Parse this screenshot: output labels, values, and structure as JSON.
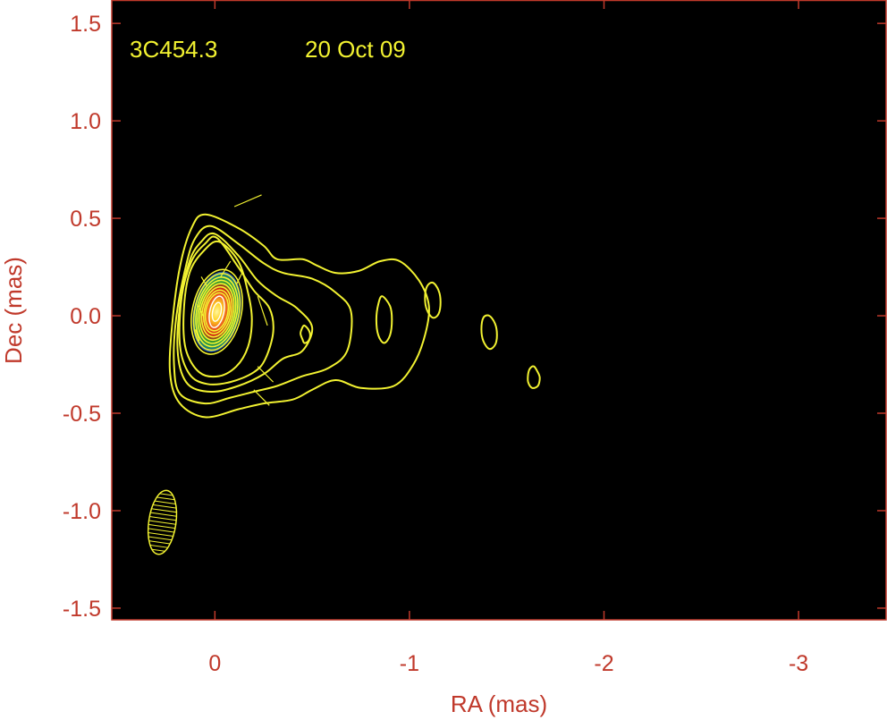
{
  "chart_data": {
    "type": "contour",
    "source_label": "3C454.3",
    "date_label": "20 Oct 09",
    "xlabel": "RA (mas)",
    "ylabel": "Dec (mas)",
    "xlim": [
      0.53,
      -3.45
    ],
    "ylim": [
      -1.56,
      1.62
    ],
    "x_ticks": [
      {
        "value": 0,
        "label": "0"
      },
      {
        "value": -1,
        "label": "-1"
      },
      {
        "value": -2,
        "label": "-2"
      },
      {
        "value": -3,
        "label": "-3"
      }
    ],
    "y_ticks": [
      {
        "value": 1.5,
        "label": "1.5"
      },
      {
        "value": 1.0,
        "label": "1.0"
      },
      {
        "value": 0.5,
        "label": "0.5"
      },
      {
        "value": 0.0,
        "label": "0.0"
      },
      {
        "value": -0.5,
        "label": "-0.5"
      },
      {
        "value": -1.0,
        "label": "-1.0"
      },
      {
        "value": -1.5,
        "label": "-1.5"
      }
    ],
    "core": {
      "x": -0.01,
      "y": 0.02,
      "width": 0.24,
      "height": 0.42,
      "tilt_deg": 12
    },
    "outer_contours": [
      [
        [
          0.05,
          0.52
        ],
        [
          -0.12,
          0.45
        ],
        [
          -0.25,
          0.36
        ],
        [
          -0.32,
          0.29
        ],
        [
          -0.45,
          0.29
        ],
        [
          -0.52,
          0.26
        ],
        [
          -0.62,
          0.22
        ],
        [
          -0.74,
          0.23
        ],
        [
          -0.85,
          0.28
        ],
        [
          -0.95,
          0.28
        ],
        [
          -1.05,
          0.18
        ],
        [
          -1.1,
          0.05
        ],
        [
          -1.08,
          -0.1
        ],
        [
          -1.02,
          -0.25
        ],
        [
          -0.92,
          -0.36
        ],
        [
          -0.75,
          -0.37
        ],
        [
          -0.62,
          -0.33
        ],
        [
          -0.5,
          -0.38
        ],
        [
          -0.4,
          -0.43
        ],
        [
          -0.25,
          -0.45
        ],
        [
          -0.12,
          -0.48
        ],
        [
          0.05,
          -0.52
        ],
        [
          0.18,
          -0.45
        ],
        [
          0.23,
          -0.3
        ],
        [
          0.22,
          -0.05
        ],
        [
          0.18,
          0.25
        ],
        [
          0.12,
          0.45
        ],
        [
          0.05,
          0.52
        ]
      ],
      [
        [
          0.02,
          0.46
        ],
        [
          -0.12,
          0.37
        ],
        [
          -0.25,
          0.27
        ],
        [
          -0.35,
          0.22
        ],
        [
          -0.5,
          0.19
        ],
        [
          -0.62,
          0.12
        ],
        [
          -0.7,
          0.02
        ],
        [
          -0.68,
          -0.18
        ],
        [
          -0.58,
          -0.27
        ],
        [
          -0.45,
          -0.31
        ],
        [
          -0.32,
          -0.36
        ],
        [
          -0.2,
          -0.39
        ],
        [
          -0.08,
          -0.42
        ],
        [
          0.05,
          -0.45
        ],
        [
          0.18,
          -0.4
        ],
        [
          0.21,
          -0.25
        ],
        [
          0.2,
          -0.02
        ],
        [
          0.15,
          0.25
        ],
        [
          0.1,
          0.4
        ],
        [
          0.02,
          0.46
        ]
      ],
      [
        [
          0.0,
          0.42
        ],
        [
          -0.12,
          0.31
        ],
        [
          -0.22,
          0.18
        ],
        [
          -0.32,
          0.1
        ],
        [
          -0.42,
          0.04
        ],
        [
          -0.5,
          -0.06
        ],
        [
          -0.45,
          -0.18
        ],
        [
          -0.35,
          -0.22
        ],
        [
          -0.25,
          -0.3
        ],
        [
          -0.12,
          -0.36
        ],
        [
          0.02,
          -0.39
        ],
        [
          0.14,
          -0.35
        ],
        [
          0.19,
          -0.2
        ],
        [
          0.18,
          0.05
        ],
        [
          0.13,
          0.28
        ],
        [
          0.07,
          0.38
        ],
        [
          0.0,
          0.42
        ]
      ],
      [
        [
          -0.01,
          0.4
        ],
        [
          -0.12,
          0.25
        ],
        [
          -0.2,
          0.13
        ],
        [
          -0.28,
          0.04
        ],
        [
          -0.3,
          -0.08
        ],
        [
          -0.26,
          -0.22
        ],
        [
          -0.2,
          -0.29
        ],
        [
          -0.08,
          -0.34
        ],
        [
          0.04,
          -0.35
        ],
        [
          0.13,
          -0.3
        ],
        [
          0.18,
          -0.15
        ],
        [
          0.17,
          0.1
        ],
        [
          0.12,
          0.28
        ],
        [
          0.05,
          0.37
        ],
        [
          -0.01,
          0.4
        ]
      ],
      [
        [
          -0.02,
          0.38
        ],
        [
          -0.12,
          0.28
        ],
        [
          -0.17,
          0.12
        ],
        [
          -0.19,
          -0.02
        ],
        [
          -0.17,
          -0.16
        ],
        [
          -0.11,
          -0.26
        ],
        [
          -0.02,
          -0.31
        ],
        [
          0.08,
          -0.29
        ],
        [
          0.15,
          -0.17
        ],
        [
          0.16,
          0.02
        ],
        [
          0.13,
          0.22
        ],
        [
          0.06,
          0.33
        ],
        [
          -0.02,
          0.38
        ]
      ],
      [
        [
          -0.86,
          0.1
        ],
        [
          -0.9,
          0.05
        ],
        [
          -0.91,
          -0.02
        ],
        [
          -0.9,
          -0.1
        ],
        [
          -0.87,
          -0.14
        ],
        [
          -0.84,
          -0.1
        ],
        [
          -0.83,
          -0.02
        ],
        [
          -0.84,
          0.06
        ],
        [
          -0.86,
          0.1
        ]
      ],
      [
        [
          -0.46,
          -0.05
        ],
        [
          -0.48,
          -0.07
        ],
        [
          -0.49,
          -0.1
        ],
        [
          -0.48,
          -0.13
        ],
        [
          -0.46,
          -0.14
        ],
        [
          -0.45,
          -0.12
        ],
        [
          -0.44,
          -0.09
        ],
        [
          -0.45,
          -0.06
        ],
        [
          -0.46,
          -0.05
        ]
      ],
      [
        [
          -1.12,
          0.17
        ],
        [
          -1.15,
          0.13
        ],
        [
          -1.16,
          0.07
        ],
        [
          -1.15,
          0.01
        ],
        [
          -1.12,
          -0.01
        ],
        [
          -1.09,
          0.03
        ],
        [
          -1.08,
          0.09
        ],
        [
          -1.09,
          0.15
        ],
        [
          -1.12,
          0.17
        ]
      ],
      [
        [
          -1.41,
          0.0
        ],
        [
          -1.44,
          -0.04
        ],
        [
          -1.45,
          -0.1
        ],
        [
          -1.44,
          -0.15
        ],
        [
          -1.41,
          -0.17
        ],
        [
          -1.38,
          -0.13
        ],
        [
          -1.37,
          -0.07
        ],
        [
          -1.38,
          -0.01
        ],
        [
          -1.41,
          0.0
        ]
      ],
      [
        [
          -1.64,
          -0.26
        ],
        [
          -1.66,
          -0.29
        ],
        [
          -1.67,
          -0.32
        ],
        [
          -1.66,
          -0.36
        ],
        [
          -1.63,
          -0.37
        ],
        [
          -1.61,
          -0.34
        ],
        [
          -1.61,
          -0.3
        ],
        [
          -1.62,
          -0.27
        ],
        [
          -1.64,
          -0.26
        ]
      ]
    ],
    "core_contour_scales": [
      1.05,
      0.95,
      0.86,
      0.78,
      0.7,
      0.62,
      0.54,
      0.47
    ],
    "polarization_ticks": [
      [
        [
          -0.1,
          0.56
        ],
        [
          -0.24,
          0.62
        ]
      ],
      [
        [
          -0.08,
          0.28
        ],
        [
          -0.03,
          0.2
        ]
      ],
      [
        [
          -0.14,
          0.22
        ],
        [
          -0.11,
          0.16
        ]
      ],
      [
        [
          -0.22,
          0.1
        ],
        [
          -0.27,
          -0.05
        ]
      ],
      [
        [
          0.07,
          0.2
        ],
        [
          0.04,
          0.15
        ]
      ],
      [
        [
          0.09,
          0.06
        ],
        [
          0.06,
          0.0
        ]
      ],
      [
        [
          0.1,
          -0.07
        ],
        [
          0.08,
          -0.13
        ]
      ],
      [
        [
          -0.22,
          -0.26
        ],
        [
          -0.3,
          -0.34
        ]
      ],
      [
        [
          -0.2,
          -0.38
        ],
        [
          -0.28,
          -0.46
        ]
      ]
    ],
    "beam": {
      "x": 0.27,
      "y": -1.06,
      "width": 0.14,
      "height": 0.33,
      "tilt_deg": 8
    },
    "colors": {
      "background": "#000000",
      "axes": "#c0392b",
      "contours": "#f2f231",
      "annotation": "#f2f231"
    }
  }
}
